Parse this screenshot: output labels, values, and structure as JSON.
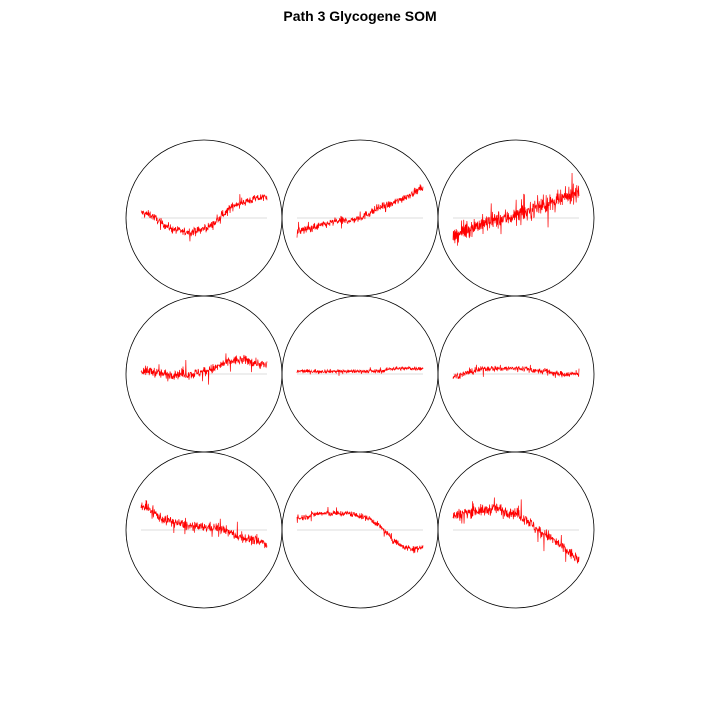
{
  "chart_data": {
    "type": "line",
    "title": "Path 3 Glycogene SOM",
    "grid": {
      "rows": 3,
      "cols": 3
    },
    "colors": {
      "series": "#ff0000",
      "baseline": "#bbbbbb",
      "circle": "#000000",
      "background": "#ffffff"
    },
    "x_points": 400,
    "node_profiles": [
      {
        "node": "row1-col1",
        "trend": [
          0.1,
          0.05,
          -0.1,
          -0.2,
          -0.25,
          -0.25,
          -0.2,
          -0.1,
          0.1,
          0.25,
          0.3,
          0.35,
          0.4
        ],
        "noise": 0.2
      },
      {
        "node": "row1-col2",
        "trend": [
          -0.25,
          -0.2,
          -0.15,
          -0.1,
          -0.05,
          -0.05,
          0.0,
          0.1,
          0.2,
          0.25,
          0.35,
          0.45,
          0.55
        ],
        "noise": 0.2
      },
      {
        "node": "row1-col3",
        "trend": [
          -0.35,
          -0.25,
          -0.15,
          -0.1,
          -0.05,
          0.0,
          0.05,
          0.1,
          0.2,
          0.25,
          0.3,
          0.4,
          0.5
        ],
        "noise": 0.45
      },
      {
        "node": "row2-col1",
        "trend": [
          0.05,
          0.05,
          0.0,
          0.0,
          0.0,
          0.0,
          0.05,
          0.1,
          0.2,
          0.25,
          0.25,
          0.2,
          0.15
        ],
        "noise": 0.25
      },
      {
        "node": "row2-col2",
        "trend": [
          0.05,
          0.05,
          0.05,
          0.05,
          0.05,
          0.05,
          0.05,
          0.05,
          0.05,
          0.1,
          0.1,
          0.1,
          0.1
        ],
        "noise": 0.1
      },
      {
        "node": "row2-col3",
        "trend": [
          -0.05,
          0.0,
          0.05,
          0.1,
          0.1,
          0.1,
          0.1,
          0.1,
          0.05,
          0.05,
          0.0,
          0.0,
          0.0
        ],
        "noise": 0.15
      },
      {
        "node": "row3-col1",
        "trend": [
          0.45,
          0.35,
          0.2,
          0.15,
          0.1,
          0.05,
          0.05,
          0.05,
          0.0,
          -0.1,
          -0.15,
          -0.2,
          -0.25
        ],
        "noise": 0.25
      },
      {
        "node": "row3-col2",
        "trend": [
          0.2,
          0.25,
          0.3,
          0.3,
          0.3,
          0.3,
          0.25,
          0.2,
          0.05,
          -0.15,
          -0.3,
          -0.35,
          -0.3
        ],
        "noise": 0.15
      },
      {
        "node": "row3-col3",
        "trend": [
          0.25,
          0.3,
          0.35,
          0.35,
          0.4,
          0.35,
          0.3,
          0.2,
          0.0,
          -0.1,
          -0.25,
          -0.4,
          -0.55
        ],
        "noise": 0.3
      }
    ]
  }
}
